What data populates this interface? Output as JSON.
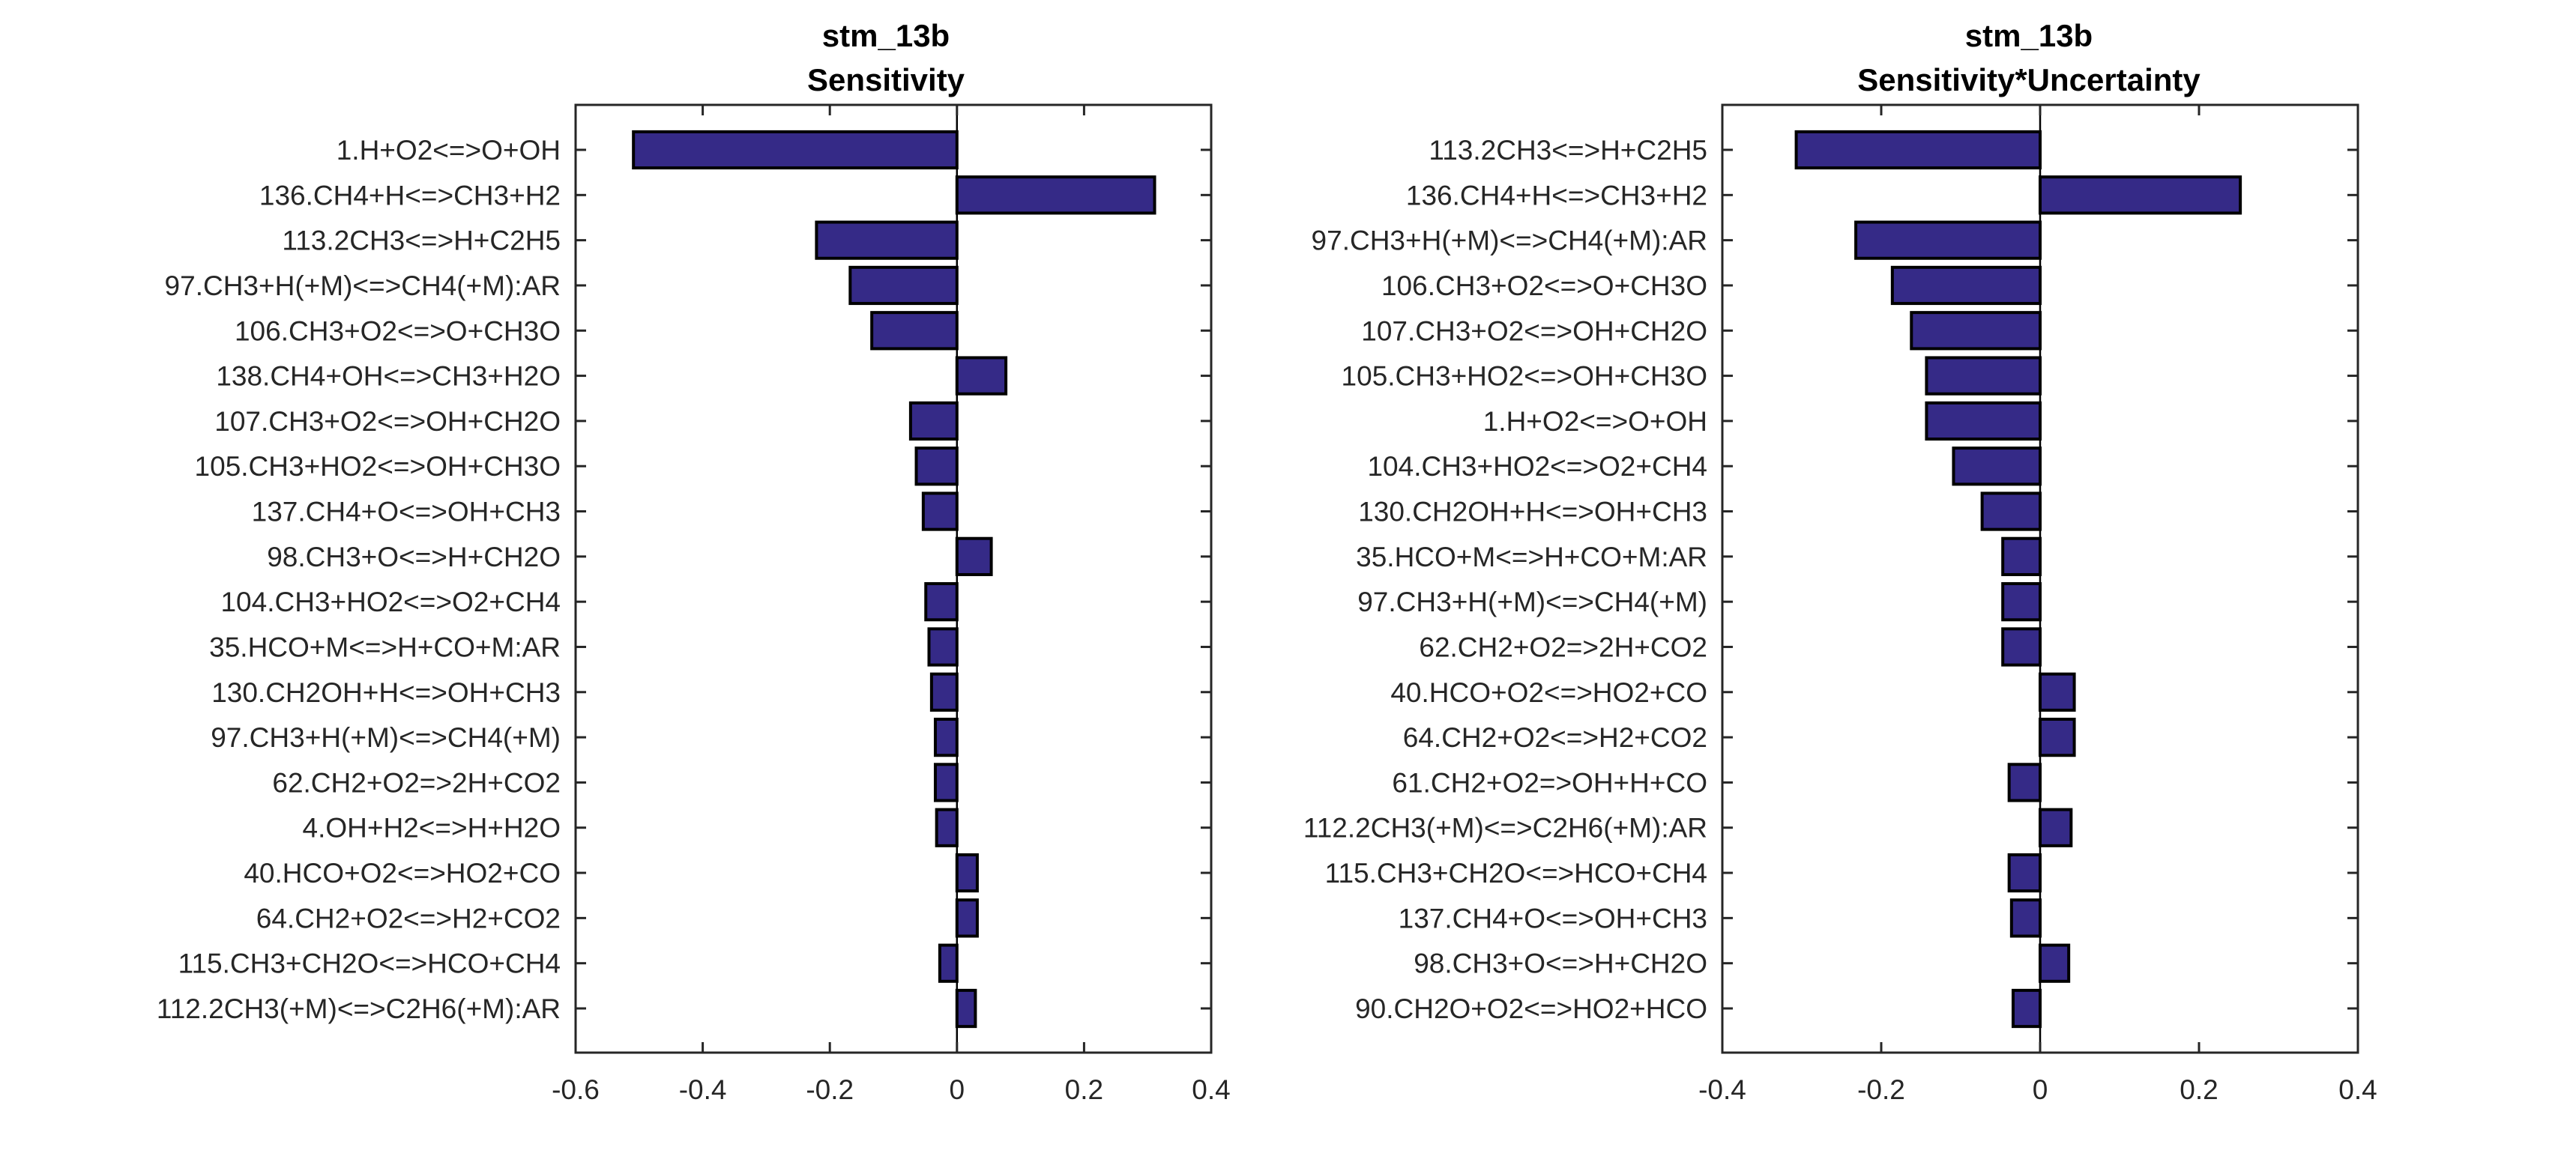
{
  "chart_data": [
    {
      "type": "bar",
      "orientation": "horizontal",
      "title": "stm_13b",
      "subtitle": "Sensitivity",
      "xlabel": "",
      "ylabel": "",
      "xlim": [
        -0.6,
        0.4
      ],
      "xticks": [
        "-0.6",
        "-0.4",
        "-0.2",
        "0",
        "0.2",
        "0.4"
      ],
      "xtick_values": [
        -0.6,
        -0.4,
        -0.2,
        0,
        0.2,
        0.4
      ],
      "grid": false,
      "bar_color": "#352A87",
      "categories": [
        "1.H+O2<=>O+OH",
        "136.CH4+H<=>CH3+H2",
        "113.2CH3<=>H+C2H5",
        "97.CH3+H(+M)<=>CH4(+M):AR",
        "106.CH3+O2<=>O+CH3O",
        "138.CH4+OH<=>CH3+H2O",
        "107.CH3+O2<=>OH+CH2O",
        "105.CH3+HO2<=>OH+CH3O",
        "137.CH4+O<=>OH+CH3",
        "98.CH3+O<=>H+CH2O",
        "104.CH3+HO2<=>O2+CH4",
        "35.HCO+M<=>H+CO+M:AR",
        "130.CH2OH+H<=>OH+CH3",
        "97.CH3+H(+M)<=>CH4(+M)",
        "62.CH2+O2=>2H+CO2",
        "4.OH+H2<=>H+H2O",
        "40.HCO+O2<=>HO2+CO",
        "64.CH2+O2<=>H2+CO2",
        "115.CH3+CH2O<=>HCO+CH4",
        "112.2CH3(+M)<=>C2H6(+M):AR"
      ],
      "values": [
        -0.509,
        0.311,
        -0.221,
        -0.168,
        -0.134,
        0.077,
        -0.073,
        -0.064,
        -0.053,
        0.054,
        -0.049,
        -0.044,
        -0.04,
        -0.034,
        -0.034,
        -0.032,
        0.032,
        0.032,
        -0.027,
        0.029
      ]
    },
    {
      "type": "bar",
      "orientation": "horizontal",
      "title": "stm_13b",
      "subtitle": "Sensitivity*Uncertainty",
      "xlabel": "",
      "ylabel": "",
      "xlim": [
        -0.4,
        0.4
      ],
      "xticks": [
        "-0.4",
        "-0.2",
        "0",
        "0.2",
        "0.4"
      ],
      "xtick_values": [
        -0.4,
        -0.2,
        0,
        0.2,
        0.4
      ],
      "grid": false,
      "bar_color": "#352A87",
      "categories": [
        "113.2CH3<=>H+C2H5",
        "136.CH4+H<=>CH3+H2",
        "97.CH3+H(+M)<=>CH4(+M):AR",
        "106.CH3+O2<=>O+CH3O",
        "107.CH3+O2<=>OH+CH2O",
        "105.CH3+HO2<=>OH+CH3O",
        "1.H+O2<=>O+OH",
        "104.CH3+HO2<=>O2+CH4",
        "130.CH2OH+H<=>OH+CH3",
        "35.HCO+M<=>H+CO+M:AR",
        "97.CH3+H(+M)<=>CH4(+M)",
        "62.CH2+O2=>2H+CO2",
        "40.HCO+O2<=>HO2+CO",
        "64.CH2+O2<=>H2+CO2",
        "61.CH2+O2=>OH+H+CO",
        "112.2CH3(+M)<=>C2H6(+M):AR",
        "115.CH3+CH2O<=>HCO+CH4",
        "137.CH4+O<=>OH+CH3",
        "98.CH3+O<=>H+CH2O",
        "90.CH2O+O2<=>HO2+HCO"
      ],
      "values": [
        -0.307,
        0.252,
        -0.232,
        -0.186,
        -0.162,
        -0.143,
        -0.143,
        -0.109,
        -0.073,
        -0.047,
        -0.047,
        -0.047,
        0.043,
        0.043,
        -0.039,
        0.039,
        -0.039,
        -0.036,
        0.036,
        -0.034
      ]
    }
  ]
}
